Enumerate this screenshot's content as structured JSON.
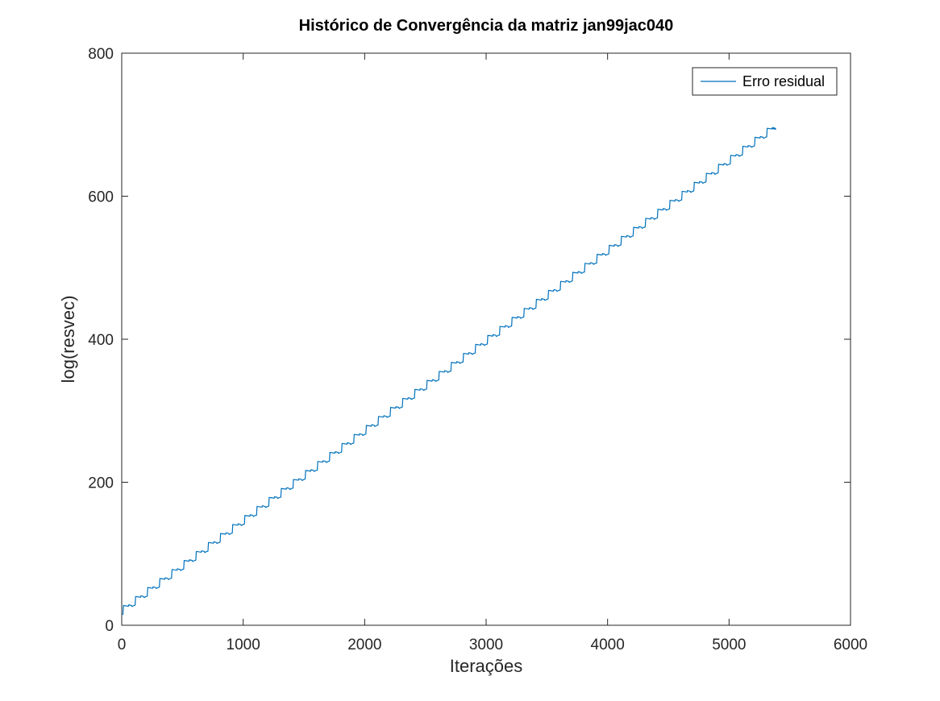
{
  "chart_data": {
    "type": "line",
    "title": "Histórico de Convergência da matriz jan99jac040",
    "xlabel": "Iterações",
    "ylabel": "log(resvec)",
    "xlim": [
      0,
      6000
    ],
    "ylim": [
      0,
      800
    ],
    "xticks": [
      "0",
      "1000",
      "2000",
      "3000",
      "4000",
      "5000",
      "6000"
    ],
    "yticks": [
      "0",
      "200",
      "400",
      "600",
      "800"
    ],
    "grid": false,
    "legend_position": "top-right",
    "series": [
      {
        "name": "Erro residual",
        "color": "#0072BD",
        "pattern": "sawtooth-staircase",
        "start_x": 0,
        "start_y": 15,
        "end_x": 5350,
        "end_y": 695,
        "period_iterations": 100,
        "step_rise": 12.6,
        "drop": 14
      }
    ]
  }
}
